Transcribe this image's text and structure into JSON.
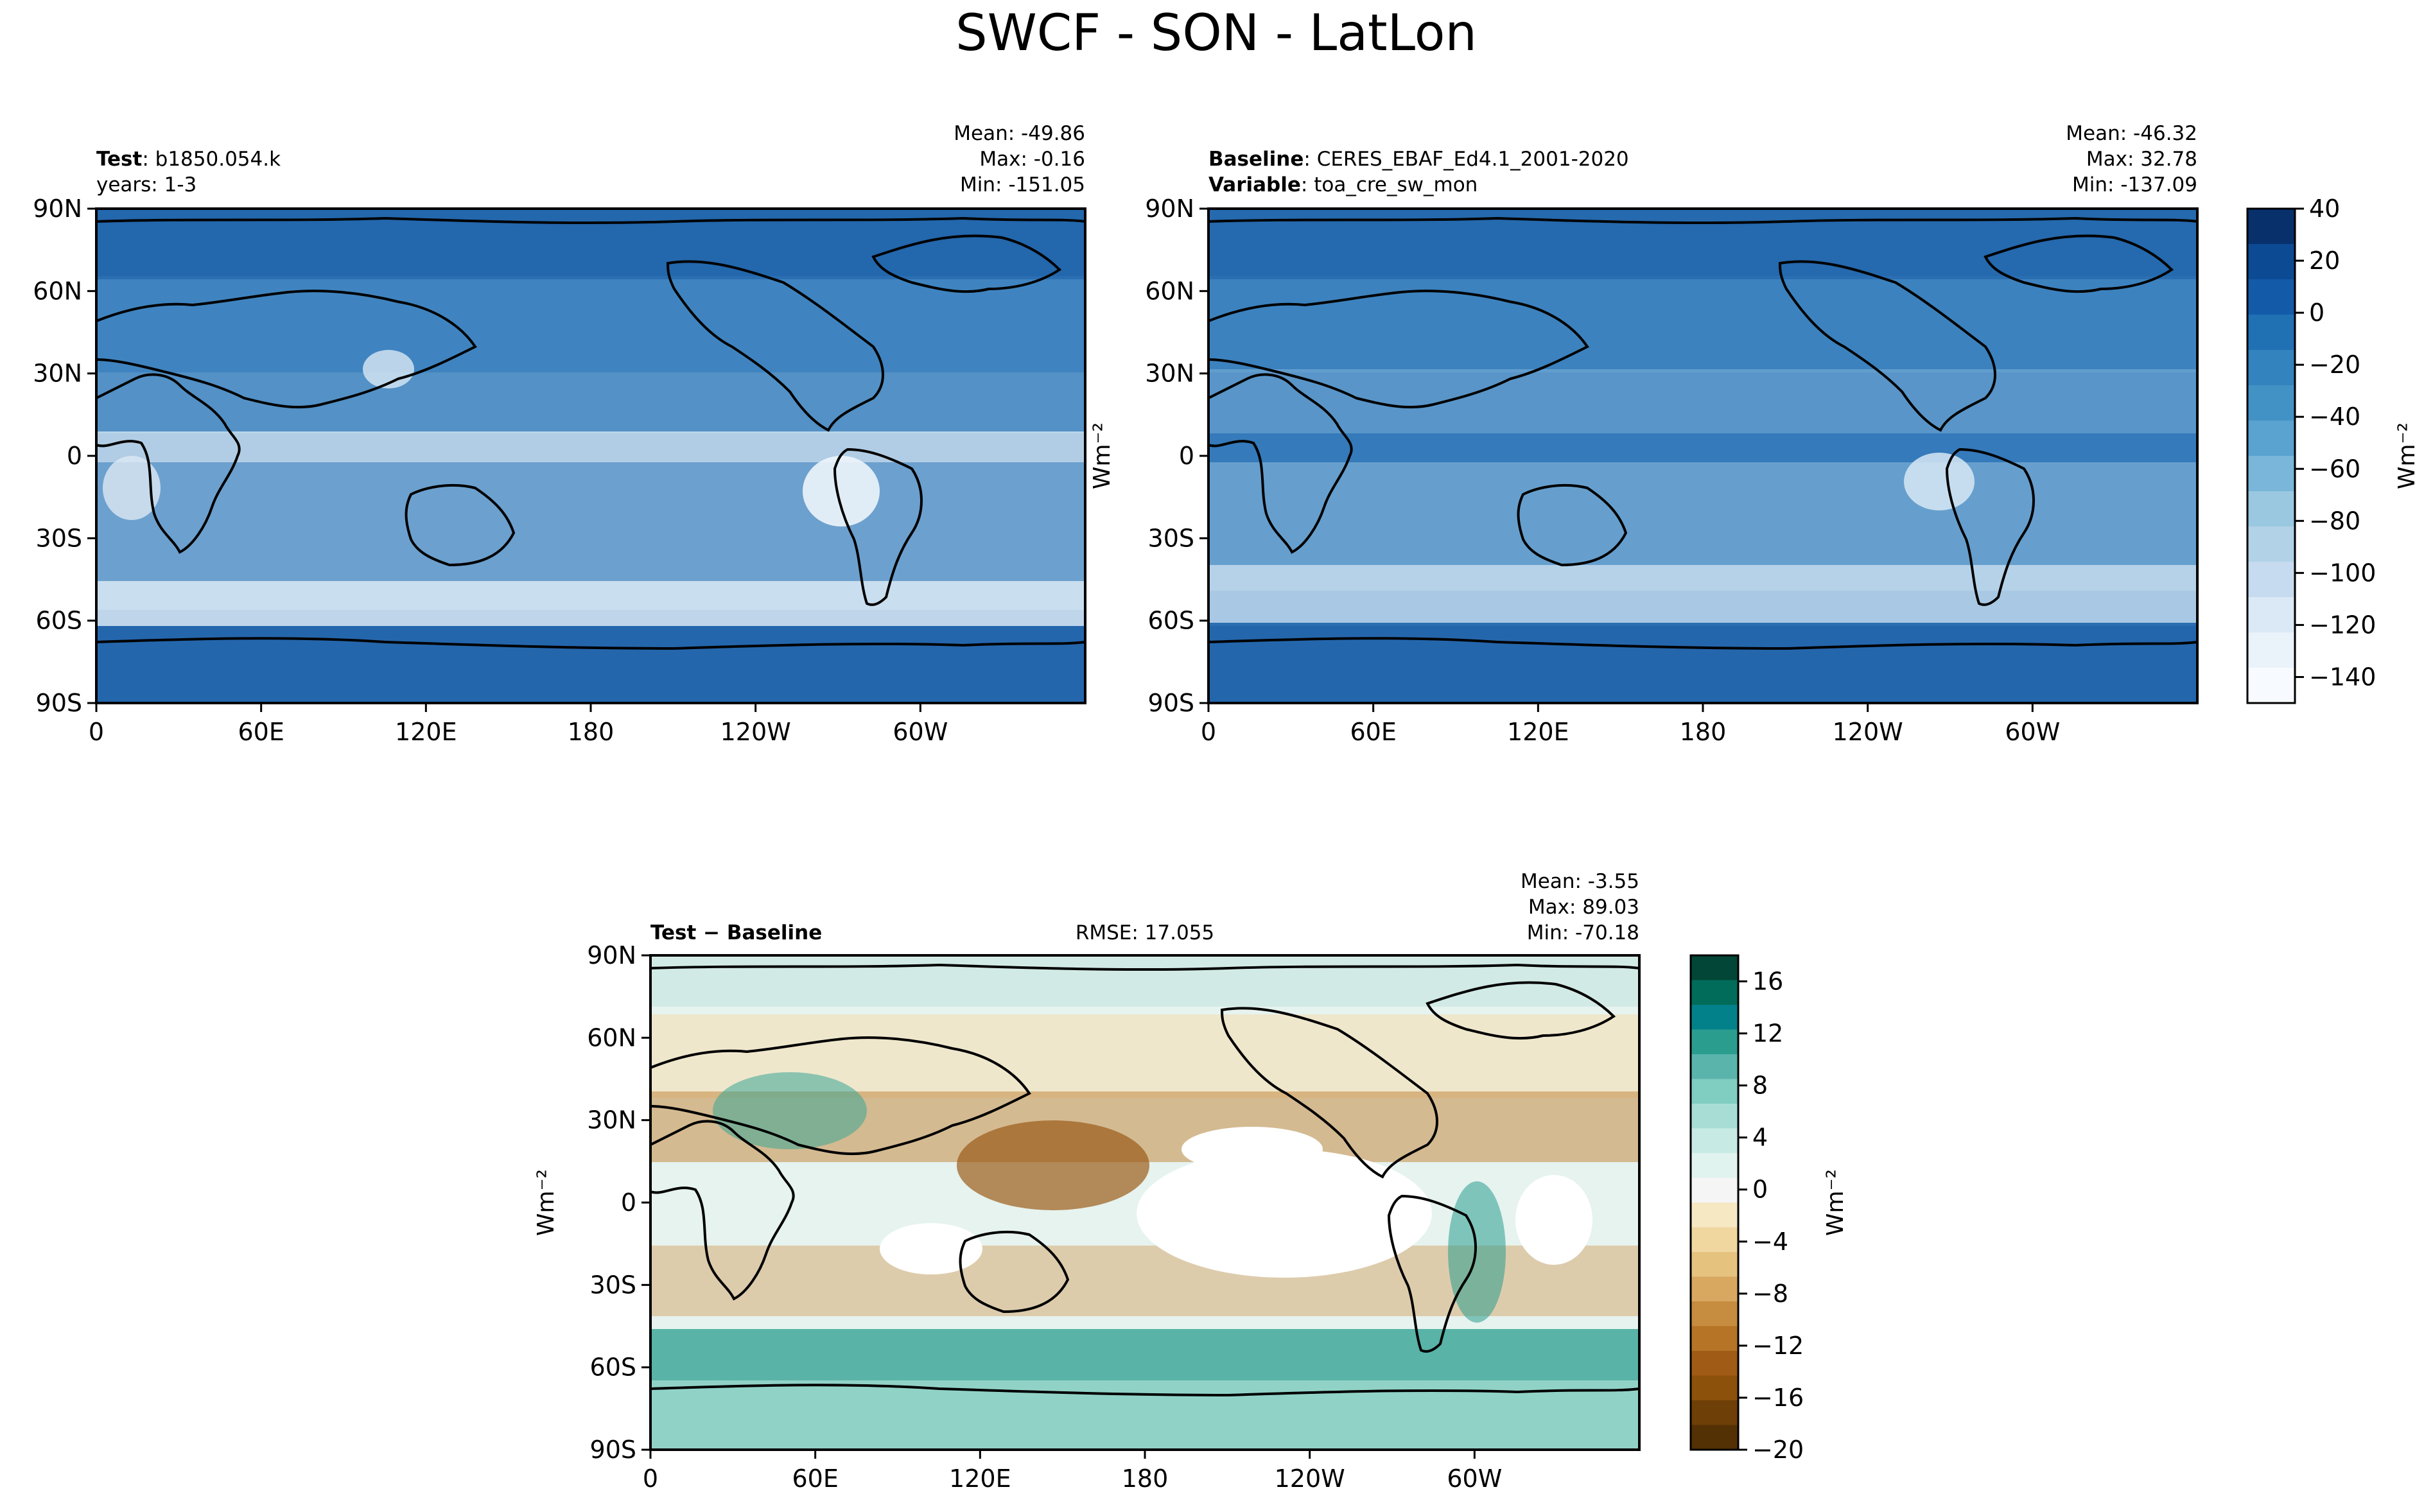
{
  "title": "SWCF - SON - LatLon",
  "chart_data": [
    {
      "type": "heatmap",
      "name": "test",
      "label_key": "Test",
      "label_value": "b1850.054.k",
      "years": "years: 1-3",
      "stats": {
        "mean": "Mean: -49.86",
        "max": "Max: -0.16",
        "min": "Min: -151.05"
      },
      "xticks": [
        "0",
        "60E",
        "120E",
        "180",
        "120W",
        "60W"
      ],
      "yticks": [
        "90N",
        "60N",
        "30N",
        "0",
        "30S",
        "60S",
        "90S"
      ],
      "xlim": [
        0,
        360
      ],
      "ylim": [
        -90,
        90
      ]
    },
    {
      "type": "heatmap",
      "name": "baseline",
      "line1_key": "Baseline",
      "line1_value": "CERES_EBAF_Ed4.1_2001-2020",
      "line2_key": "Variable",
      "line2_value": "toa_cre_sw_mon",
      "stats": {
        "mean": "Mean: -46.32",
        "max": "Max: 32.78",
        "min": "Min: -137.09"
      },
      "xticks": [
        "0",
        "60E",
        "120E",
        "180",
        "120W",
        "60W"
      ],
      "yticks": [
        "90N",
        "60N",
        "30N",
        "0",
        "30S",
        "60S",
        "90S"
      ],
      "xlim": [
        0,
        360
      ],
      "ylim": [
        -90,
        90
      ]
    },
    {
      "type": "heatmap",
      "name": "difference",
      "label": "Test − Baseline",
      "rmse": "RMSE: 17.055",
      "stats": {
        "mean": "Mean: -3.55",
        "max": "Max: 89.03",
        "min": "Min: -70.18"
      },
      "xticks": [
        "0",
        "60E",
        "120E",
        "180",
        "120W",
        "60W"
      ],
      "yticks": [
        "90N",
        "60N",
        "30N",
        "0",
        "30S",
        "60S",
        "90S"
      ],
      "xlim": [
        0,
        360
      ],
      "ylim": [
        -90,
        90
      ]
    }
  ],
  "colorbars": {
    "main": {
      "ticks": [
        "40",
        "20",
        "0",
        "−20",
        "−40",
        "−60",
        "−80",
        "−100",
        "−120",
        "−140"
      ],
      "range": [
        -150,
        40
      ],
      "unit": "Wm⁻²",
      "colors": [
        "#08306b",
        "#0d4a94",
        "#135ba8",
        "#2070b4",
        "#3383be",
        "#4292c6",
        "#5aa2cf",
        "#79b6d9",
        "#9ac8e0",
        "#b2d2e8",
        "#c6dbef",
        "#dbe9f6",
        "#eaf2fa",
        "#f7fbff"
      ]
    },
    "diff": {
      "ticks": [
        "16",
        "12",
        "8",
        "4",
        "0",
        "−4",
        "−8",
        "−12",
        "−16",
        "−20"
      ],
      "range": [
        -20,
        18
      ],
      "unit": "Wm⁻²",
      "colors": [
        "#014636",
        "#016c59",
        "#02818a",
        "#2a9d8f",
        "#5ab4ac",
        "#80cdc1",
        "#a8ddd5",
        "#c7eae5",
        "#e0f3ef",
        "#f5f5f5",
        "#f6e8c3",
        "#f0d7a0",
        "#e6c27f",
        "#d8a861",
        "#c68c3f",
        "#b57426",
        "#a05b16",
        "#8c510a",
        "#6e3f06",
        "#543005"
      ]
    }
  },
  "axis_unit": "Wm⁻²"
}
